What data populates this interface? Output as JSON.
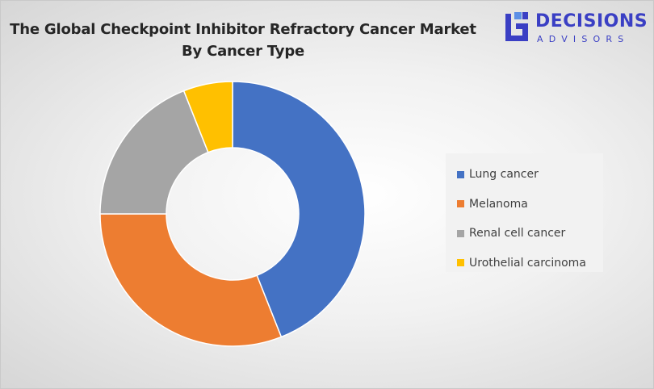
{
  "chart_data": {
    "type": "pie",
    "variant": "donut",
    "title_line1": "The Global Checkpoint Inhibitor Refractory Cancer Market",
    "title_line2": "By Cancer Type",
    "categories": [
      "Lung cancer",
      "Melanoma",
      "Renal cell cancer",
      "Urothelial carcinoma"
    ],
    "values": [
      44,
      31,
      19,
      6
    ],
    "colors": [
      "#4472c4",
      "#ed7d31",
      "#a5a5a5",
      "#ffc000"
    ],
    "legend_position": "right"
  },
  "logo": {
    "name": "DECISIONS",
    "tagline": "ADVISORS",
    "icon": "decisions-advisors-logo-icon",
    "color": "#3a3fc4"
  }
}
